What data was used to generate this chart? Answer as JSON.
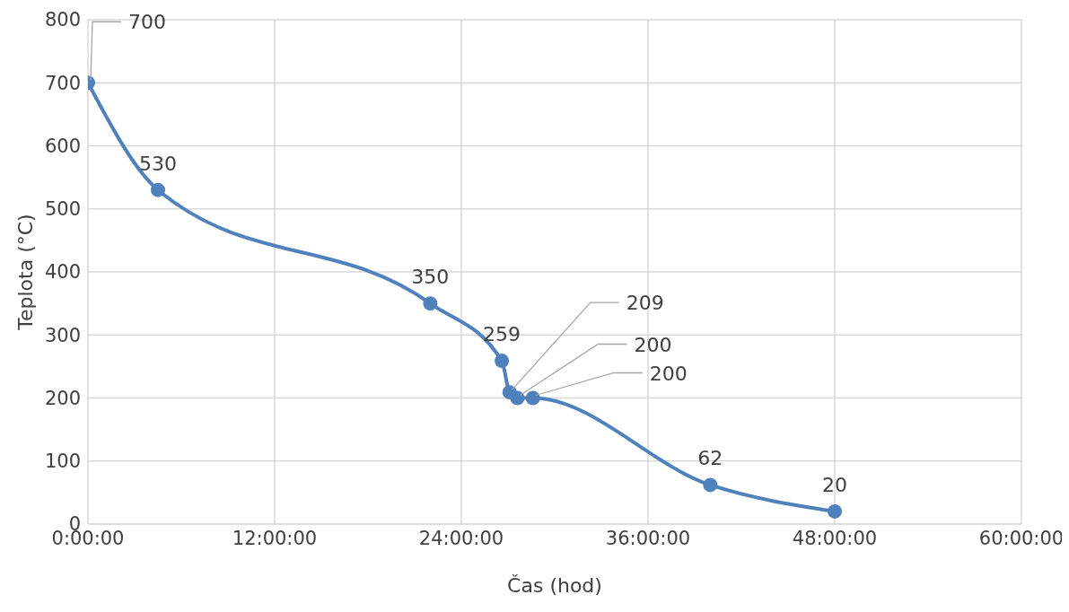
{
  "chart_data": {
    "type": "line",
    "xlabel": "Čas (hod)",
    "ylabel": "Teplota (°C)",
    "x": [
      0,
      4.5,
      22,
      26.6,
      27.1,
      27.6,
      28.6,
      40,
      48
    ],
    "series": [
      {
        "color": "#4f81bd",
        "values": [
          700,
          530,
          350,
          259,
          209,
          200,
          200,
          62,
          20
        ],
        "value_labels": [
          "700",
          "530",
          "350",
          "259",
          null,
          null,
          null,
          "62",
          "20"
        ]
      }
    ],
    "annotations": [
      {
        "text": "209",
        "x": 27.1,
        "y": 209
      },
      {
        "text": "200",
        "x": 27.6,
        "y": 200
      },
      {
        "text": "200",
        "x": 28.6,
        "y": 200
      }
    ],
    "xlim": [
      0,
      60
    ],
    "xticks": [
      {
        "value": 0,
        "label": "0:00:00"
      },
      {
        "value": 12,
        "label": "12:00:00"
      },
      {
        "value": 24,
        "label": "24:00:00"
      },
      {
        "value": 36,
        "label": "36:00:00"
      },
      {
        "value": 48,
        "label": "48:00:00"
      },
      {
        "value": 60,
        "label": "60:00:00"
      }
    ],
    "ylim": [
      0,
      800
    ],
    "yticks": [
      0,
      100,
      200,
      300,
      400,
      500,
      600,
      700,
      800
    ],
    "grid": true,
    "marker": "circle",
    "line_style": "solid"
  }
}
